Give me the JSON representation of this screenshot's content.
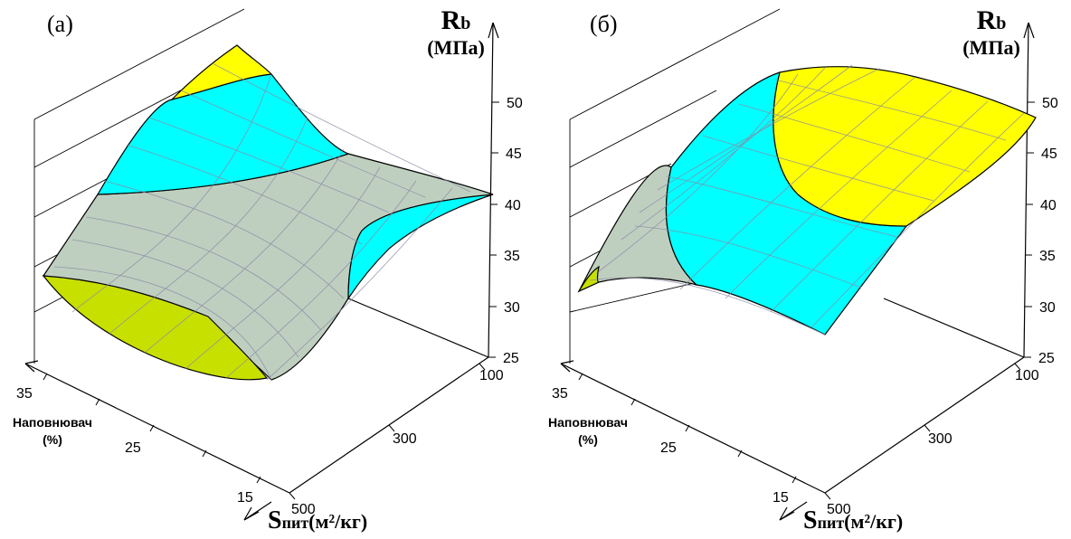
{
  "chart_data": [
    {
      "type": "surface",
      "panel_label": "(а)",
      "zlabel": {
        "symbol": "R",
        "subscript": "b",
        "unit": "(МПа)"
      },
      "ylabel": {
        "line1": "Наповнювач",
        "line2": "(%)"
      },
      "xlabel": {
        "symbol": "S",
        "subscript": "пит",
        "unit": "(м²/кг)"
      },
      "z_ticks": [
        "25",
        "30",
        "35",
        "40",
        "45",
        "50"
      ],
      "y_ticks": [
        "35",
        "25",
        "15"
      ],
      "x_ticks": [
        "100",
        "300",
        "500"
      ],
      "zlim": [
        25,
        50
      ],
      "colors": {
        "yellow": "#ffff00",
        "cyan": "#00ffff",
        "grey_green": "#bfcfbf",
        "olive_yellow": "#c8e000"
      }
    },
    {
      "type": "surface",
      "panel_label": "(б)",
      "zlabel": {
        "symbol": "R",
        "subscript": "b",
        "unit": "(МПа)"
      },
      "ylabel": {
        "line1": "Наповнювач",
        "line2": "(%)"
      },
      "xlabel": {
        "symbol": "S",
        "subscript": "пит",
        "unit": "(м²/кг)"
      },
      "z_ticks": [
        "25",
        "30",
        "35",
        "40",
        "45",
        "50"
      ],
      "y_ticks": [
        "35",
        "25",
        "15"
      ],
      "x_ticks": [
        "100",
        "300",
        "500"
      ],
      "zlim": [
        25,
        50
      ],
      "colors": {
        "yellow": "#ffff00",
        "cyan": "#00ffff",
        "grey_green": "#bfcfbf",
        "olive_yellow": "#c8e000"
      }
    }
  ]
}
